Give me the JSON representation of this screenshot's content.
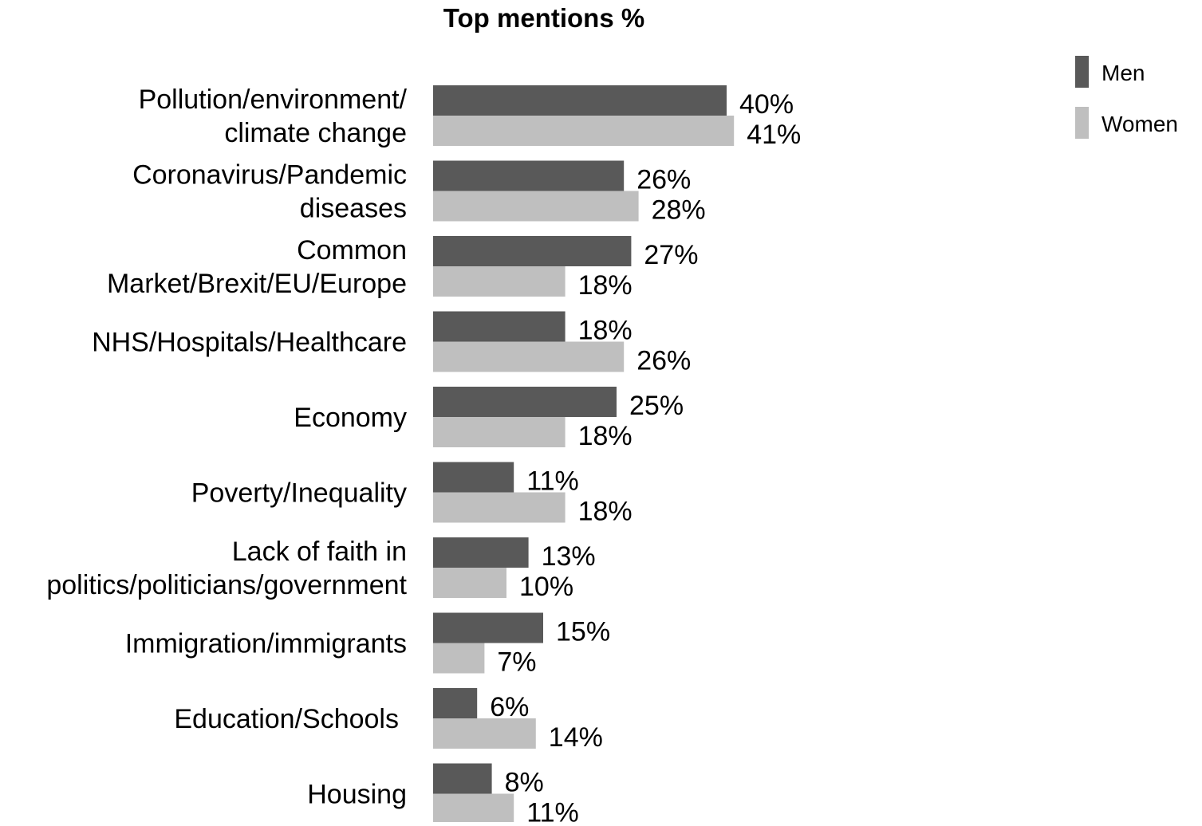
{
  "chart_data": {
    "type": "bar",
    "orientation": "horizontal",
    "title": "Top mentions %",
    "categories": [
      "Pollution/environment/ climate change",
      "Coronavirus/Pandemic diseases",
      "Common Market/Brexit/EU/Europe",
      "NHS/Hospitals/Healthcare",
      "Economy",
      "Poverty/Inequality",
      "Lack of faith in politics/politicians/government",
      "Immigration/immigrants",
      "Education/Schools",
      "Housing"
    ],
    "category_lines": [
      [
        "Pollution/environment/",
        "climate change"
      ],
      [
        "Coronavirus/Pandemic",
        "diseases"
      ],
      [
        "Common",
        "Market/Brexit/EU/Europe"
      ],
      [
        "NHS/Hospitals/Healthcare"
      ],
      [
        "Economy"
      ],
      [
        "Poverty/Inequality"
      ],
      [
        "Lack of faith in",
        "politics/politicians/government"
      ],
      [
        "Immigration/immigrants"
      ],
      [
        "Education/Schools"
      ],
      [
        "Housing"
      ]
    ],
    "series": [
      {
        "name": "Men",
        "color": "#595959",
        "values": [
          40,
          26,
          27,
          18,
          25,
          11,
          13,
          15,
          6,
          8
        ]
      },
      {
        "name": "Women",
        "color": "#bfbfbf",
        "values": [
          41,
          28,
          18,
          26,
          18,
          18,
          10,
          7,
          14,
          11
        ]
      }
    ],
    "value_suffix": "%",
    "legend": "top-right",
    "grid": false,
    "xlim": [
      0,
      41
    ]
  }
}
